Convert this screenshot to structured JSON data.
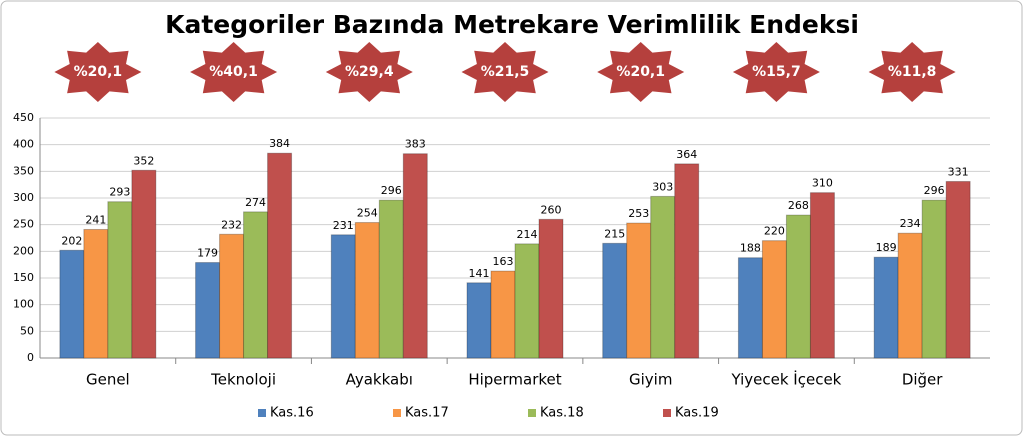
{
  "chart_data": {
    "type": "bar",
    "title": "Kategoriler Bazında Metrekare Verimlilik Endeksi",
    "categories": [
      "Genel",
      "Teknoloji",
      "Ayakkabı",
      "Hipermarket",
      "Giyim",
      "Yiyecek İçecek",
      "Diğer"
    ],
    "annotations": [
      "%20,1",
      "%40,1",
      "%29,4",
      "%21,5",
      "%20,1",
      "%15,7",
      "%11,8"
    ],
    "series": [
      {
        "name": "Kas.16",
        "color": "#4f81bd",
        "values": [
          202,
          179,
          231,
          141,
          215,
          188,
          189
        ]
      },
      {
        "name": "Kas.17",
        "color": "#f79646",
        "values": [
          241,
          232,
          254,
          163,
          253,
          220,
          234
        ]
      },
      {
        "name": "Kas.18",
        "color": "#9bbb59",
        "values": [
          293,
          274,
          296,
          214,
          303,
          268,
          296
        ]
      },
      {
        "name": "Kas.19",
        "color": "#c0504d",
        "values": [
          352,
          384,
          383,
          260,
          364,
          310,
          331
        ]
      }
    ],
    "annotation_color": "#b5403d",
    "ylim": [
      0,
      450
    ],
    "yticks": [
      0,
      50,
      100,
      150,
      200,
      250,
      300,
      350,
      400,
      450
    ],
    "grid": true
  }
}
